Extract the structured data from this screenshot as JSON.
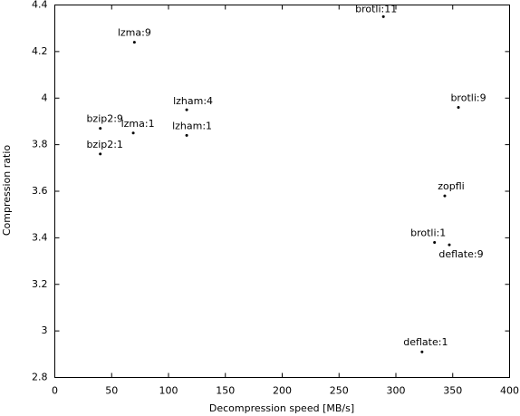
{
  "chart_data": {
    "type": "scatter",
    "xlabel": "Decompression speed [MB/s]",
    "ylabel": "Compression ratio",
    "labels": [
      "lzma:9",
      "brotli:11",
      "lzham:4",
      "brotli:9",
      "bzip2:9",
      "lzma:1",
      "lzham:1",
      "bzip2:1",
      "zopfli",
      "brotli:1",
      "deflate:9",
      "deflate:1"
    ],
    "x": [
      70,
      289,
      116,
      355,
      40,
      69,
      116,
      40,
      343,
      334,
      347,
      323
    ],
    "values": [
      4.24,
      4.35,
      3.95,
      3.96,
      3.87,
      3.85,
      3.84,
      3.76,
      3.58,
      3.38,
      3.37,
      2.91
    ],
    "color": "#000000",
    "xlim": [
      0,
      400
    ],
    "xticks": [
      0,
      50,
      100,
      150,
      200,
      250,
      300,
      350,
      400
    ],
    "ylim": [
      2.8,
      4.4
    ],
    "yticks": [
      2.8,
      3,
      3.2,
      3.4,
      3.6,
      3.8,
      4,
      4.2,
      4.4
    ]
  }
}
